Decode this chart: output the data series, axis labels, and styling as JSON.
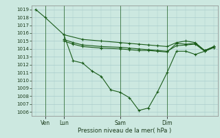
{
  "title": "Pression niveau de la mer( hPa )",
  "ylabel_ticks": [
    1006,
    1007,
    1008,
    1009,
    1010,
    1011,
    1012,
    1013,
    1014,
    1015,
    1016,
    1017,
    1018,
    1019
  ],
  "ylim": [
    1005.5,
    1019.5
  ],
  "xtick_labels": [
    "Ven",
    "Lun",
    "Sam",
    "Dim"
  ],
  "bg_color": "#cce8e0",
  "grid_color": "#aacccc",
  "line_color": "#1a5c1a",
  "line_width": 0.8,
  "marker": "+",
  "marker_size": 3.5,
  "lines": [
    {
      "x": [
        0.0,
        0.5,
        1.5,
        2.0,
        2.5,
        3.0,
        3.5,
        4.0,
        4.5,
        5.0,
        5.5,
        6.0,
        6.5,
        7.0,
        7.5,
        8.0,
        8.5,
        9.0,
        9.5
      ],
      "y": [
        1019.0,
        1018.0,
        1015.8,
        1012.5,
        1012.2,
        1011.2,
        1010.5,
        1008.8,
        1008.5,
        1007.8,
        1006.2,
        1006.5,
        1008.6,
        1011.0,
        1013.7,
        1013.7,
        1013.3,
        1013.7,
        1014.2
      ]
    },
    {
      "x": [
        1.5,
        2.5,
        3.5,
        4.5,
        5.0,
        5.5,
        6.0,
        6.5,
        7.0,
        7.5,
        8.0,
        8.5,
        9.0,
        9.5
      ],
      "y": [
        1015.8,
        1015.2,
        1015.0,
        1014.8,
        1014.7,
        1014.6,
        1014.5,
        1014.4,
        1014.3,
        1014.8,
        1015.0,
        1014.8,
        1013.8,
        1014.3
      ]
    },
    {
      "x": [
        1.5,
        2.0,
        2.5,
        3.5,
        4.5,
        5.0,
        5.5,
        6.0,
        6.5,
        7.0,
        7.5,
        8.0,
        8.5,
        9.0,
        9.5
      ],
      "y": [
        1015.2,
        1014.8,
        1014.5,
        1014.3,
        1014.2,
        1014.1,
        1014.0,
        1013.9,
        1013.8,
        1013.7,
        1014.4,
        1014.5,
        1014.6,
        1013.7,
        1014.2
      ]
    },
    {
      "x": [
        1.5,
        2.0,
        2.5,
        3.5,
        4.5,
        5.0,
        5.5,
        6.0,
        6.5,
        7.0,
        7.5,
        8.0,
        8.5,
        9.0,
        9.5
      ],
      "y": [
        1015.0,
        1014.6,
        1014.3,
        1014.1,
        1014.0,
        1013.9,
        1013.8,
        1013.8,
        1013.7,
        1013.6,
        1014.7,
        1014.6,
        1014.7,
        1013.8,
        1014.3
      ]
    }
  ],
  "vline_positions": [
    0.5,
    1.5,
    4.5,
    7.0
  ],
  "xtick_x": [
    0.5,
    1.5,
    4.5,
    7.0
  ],
  "figsize": [
    3.2,
    2.0
  ],
  "dpi": 100
}
